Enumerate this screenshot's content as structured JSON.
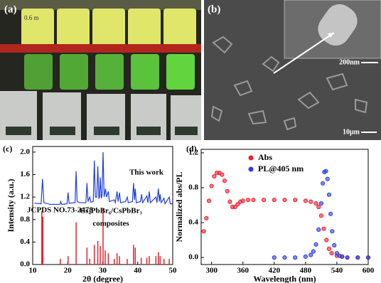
{
  "photo_a": {
    "label": "(a)",
    "caption": "0.6 m"
  },
  "photo_b": {
    "label": "(b)",
    "inset_scale": "200nm",
    "scale": "10μm"
  },
  "chart_data": [
    {
      "type": "line",
      "panel_label": "(c)",
      "xlabel": "2θ (degree)",
      "ylabel": "Intensity (a.u.)",
      "annotations": [
        "This work",
        "JCPDS NO.73-2478",
        "Cs₄PbBr₆/CsPbBr₃",
        "composites"
      ],
      "xlim": [
        10,
        50
      ],
      "ylim": [
        0,
        2.1
      ],
      "xticks": [
        10,
        20,
        30,
        40,
        50
      ],
      "yticks": [
        {
          "value": 0,
          "label": "0.0"
        },
        {
          "value": 0.4,
          "label": "0.4"
        },
        {
          "value": 0.8,
          "label": "0.8"
        },
        {
          "value": 1.2,
          "label": "1.2"
        },
        {
          "value": 1.6,
          "label": "1.6"
        },
        {
          "value": 2,
          "label": "2.0"
        }
      ],
      "series": [
        {
          "color": "#1f3ee0",
          "x": [
            10.5,
            12.4,
            12.8,
            13.2,
            15,
            17.8,
            18.0,
            18.3,
            19.8,
            20.1,
            20.4,
            22.1,
            22.4,
            22.7,
            23.5,
            25.2,
            25.5,
            25.8,
            26.3,
            26.6,
            27.3,
            27.6,
            27.9,
            28.3,
            28.6,
            28.9,
            29.1,
            29.3,
            29.6,
            29.8,
            30.1,
            30.4,
            30.8,
            31.1,
            31.6,
            31.9,
            33.3,
            33.6,
            34.1,
            34.4,
            34.8,
            35.1,
            36.5,
            37.0,
            37.3,
            38.5,
            38.8,
            39.1,
            39.3,
            39.6,
            40.8,
            41.1,
            41.4,
            42.6,
            42.9,
            43.3,
            43.6,
            45.2,
            45.5,
            45.9,
            46.2,
            46.4,
            46.7,
            47.5,
            47.8,
            49.0,
            49.3,
            50
          ],
          "values": [
            1.09,
            1.08,
            1.52,
            1.1,
            1.07,
            1.07,
            1.12,
            1.07,
            1.08,
            1.28,
            1.09,
            1.1,
            1.66,
            1.12,
            1.1,
            1.1,
            1.45,
            1.12,
            1.2,
            1.11,
            1.12,
            1.85,
            1.2,
            1.2,
            1.75,
            1.18,
            1.2,
            1.55,
            1.18,
            1.22,
            2.0,
            1.2,
            1.35,
            1.2,
            1.3,
            1.12,
            1.15,
            1.1,
            1.3,
            1.12,
            1.28,
            1.1,
            1.12,
            1.2,
            1.1,
            1.12,
            1.45,
            1.15,
            1.35,
            1.1,
            1.12,
            1.25,
            1.1,
            1.22,
            1.1,
            1.3,
            1.1,
            1.2,
            1.1,
            1.35,
            1.12,
            1.25,
            1.1,
            1.18,
            1.08,
            1.2,
            1.08,
            1.08
          ]
        },
        {
          "style": "stick",
          "color": "#e8202a",
          "x": [
            12.6,
            12.9,
            17.9,
            20.1,
            22.4,
            25.5,
            26.3,
            27.6,
            28.6,
            29.3,
            30.1,
            30.7,
            31.6,
            33.3,
            34.1,
            34.8,
            37.0,
            38.8,
            39.3,
            41.0,
            42.6,
            43.3,
            45.2,
            45.9,
            46.4,
            47.5,
            49.0
          ],
          "values": [
            0.95,
            0.85,
            0.1,
            0.15,
            0.75,
            0.3,
            0.1,
            0.35,
            0.42,
            0.33,
            1.0,
            0.25,
            0.2,
            0.1,
            0.2,
            0.15,
            0.1,
            0.35,
            0.3,
            0.12,
            0.12,
            0.15,
            0.15,
            0.22,
            0.15,
            0.1,
            0.1
          ]
        }
      ]
    },
    {
      "type": "scatter",
      "panel_label": "(d)",
      "xlabel": "Wavelength (nm)",
      "ylabel": "Normalized abs/PL",
      "legend": "top",
      "xlim": [
        280,
        600
      ],
      "ylim": [
        -0.08,
        1.24
      ],
      "xticks": [
        300,
        360,
        420,
        480,
        540,
        600
      ],
      "yticks": [
        {
          "value": 0,
          "label": "0.0"
        },
        {
          "value": 0.4,
          "label": "0.4"
        },
        {
          "value": 0.8,
          "label": "0.8"
        },
        {
          "value": 1.2,
          "label": "1.2"
        }
      ],
      "series": [
        {
          "name": "Abs",
          "color": "#ee2030",
          "x": [
            285,
            290,
            295,
            300,
            305,
            310,
            315,
            320,
            325,
            330,
            335,
            340,
            345,
            350,
            355,
            360,
            370,
            380,
            400,
            420,
            440,
            460,
            480,
            490,
            500,
            505,
            510,
            515,
            520,
            525,
            530,
            540,
            550,
            560,
            580,
            600
          ],
          "values": [
            0.3,
            0.45,
            0.65,
            0.82,
            0.93,
            0.97,
            0.97,
            0.95,
            0.88,
            0.76,
            0.64,
            0.58,
            0.58,
            0.61,
            0.64,
            0.65,
            0.66,
            0.66,
            0.66,
            0.66,
            0.66,
            0.66,
            0.65,
            0.64,
            0.62,
            0.58,
            0.48,
            0.33,
            0.2,
            0.1,
            0.05,
            0.02,
            0.01,
            0,
            0,
            0
          ]
        },
        {
          "name": "PL@405 nm",
          "color": "#2a3ee8",
          "x": [
            420,
            440,
            460,
            480,
            490,
            495,
            500,
            505,
            510,
            513,
            516,
            519,
            522,
            525,
            528,
            531,
            535,
            540,
            545,
            550,
            560,
            580,
            600
          ],
          "values": [
            0,
            0,
            0,
            0.01,
            0.03,
            0.07,
            0.15,
            0.32,
            0.62,
            0.85,
            0.98,
            0.99,
            0.9,
            0.72,
            0.5,
            0.3,
            0.14,
            0.05,
            0.02,
            0.01,
            0,
            0,
            0
          ]
        }
      ]
    }
  ]
}
